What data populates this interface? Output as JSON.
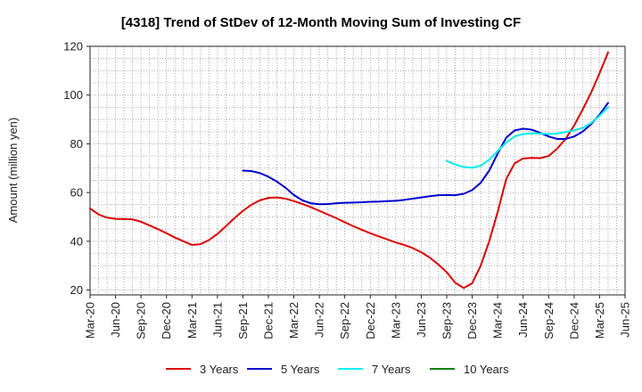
{
  "chart_data": {
    "type": "line",
    "title": "[4318]  Trend of StDev of 12-Month Moving Sum of Investing CF",
    "xlabel": "",
    "ylabel": "Amount (million yen)",
    "ylim": [
      18,
      120
    ],
    "yticks": [
      20,
      40,
      60,
      80,
      100,
      120
    ],
    "xlim": [
      "2020-03",
      "2025-06"
    ],
    "xticks": [
      "Mar-20",
      "Jun-20",
      "Sep-20",
      "Dec-20",
      "Mar-21",
      "Jun-21",
      "Sep-21",
      "Dec-21",
      "Mar-22",
      "Jun-22",
      "Sep-22",
      "Dec-22",
      "Mar-23",
      "Jun-23",
      "Sep-23",
      "Dec-23",
      "Mar-24",
      "Jun-24",
      "Sep-24",
      "Dec-24",
      "Mar-25",
      "Jun-25"
    ],
    "grid": true,
    "legend_position": "bottom",
    "series": [
      {
        "name": "3 Years",
        "color": "#dd0000",
        "points": [
          [
            "2020-03",
            53.5
          ],
          [
            "2020-04",
            51
          ],
          [
            "2020-05",
            49.7
          ],
          [
            "2020-06",
            49.2
          ],
          [
            "2020-07",
            49.1
          ],
          [
            "2020-08",
            49
          ],
          [
            "2020-09",
            48
          ],
          [
            "2020-10",
            46.5
          ],
          [
            "2020-11",
            45
          ],
          [
            "2020-12",
            43.3
          ],
          [
            "2021-01",
            41.5
          ],
          [
            "2021-02",
            40
          ],
          [
            "2021-03",
            38.5
          ],
          [
            "2021-04",
            38.8
          ],
          [
            "2021-05",
            40.5
          ],
          [
            "2021-06",
            43
          ],
          [
            "2021-07",
            46.2
          ],
          [
            "2021-08",
            49.5
          ],
          [
            "2021-09",
            52.5
          ],
          [
            "2021-10",
            55
          ],
          [
            "2021-11",
            56.8
          ],
          [
            "2021-12",
            57.8
          ],
          [
            "2022-01",
            58
          ],
          [
            "2022-02",
            57.5
          ],
          [
            "2022-03",
            56.5
          ],
          [
            "2022-04",
            55.3
          ],
          [
            "2022-05",
            54
          ],
          [
            "2022-06",
            52.5
          ],
          [
            "2022-07",
            51
          ],
          [
            "2022-08",
            49.5
          ],
          [
            "2022-09",
            47.8
          ],
          [
            "2022-10",
            46.2
          ],
          [
            "2022-11",
            44.7
          ],
          [
            "2022-12",
            43.3
          ],
          [
            "2023-01",
            42
          ],
          [
            "2023-02",
            40.8
          ],
          [
            "2023-03",
            39.5
          ],
          [
            "2023-04",
            38.5
          ],
          [
            "2023-05",
            37.2
          ],
          [
            "2023-06",
            35.5
          ],
          [
            "2023-07",
            33.3
          ],
          [
            "2023-08",
            30.5
          ],
          [
            "2023-09",
            27.3
          ],
          [
            "2023-10",
            23
          ],
          [
            "2023-11",
            20.8
          ],
          [
            "2023-12",
            22.8
          ],
          [
            "2024-01",
            30
          ],
          [
            "2024-02",
            40
          ],
          [
            "2024-03",
            52
          ],
          [
            "2024-04",
            65.5
          ],
          [
            "2024-05",
            72
          ],
          [
            "2024-06",
            74
          ],
          [
            "2024-07",
            74.2
          ],
          [
            "2024-08",
            74.1
          ],
          [
            "2024-09",
            75
          ],
          [
            "2024-10",
            78
          ],
          [
            "2024-11",
            82
          ],
          [
            "2024-12",
            87.5
          ],
          [
            "2025-01",
            94
          ],
          [
            "2025-02",
            101
          ],
          [
            "2025-03",
            109
          ],
          [
            "2025-04",
            117.5
          ]
        ]
      },
      {
        "name": "5 Years",
        "color": "#0000cc",
        "points": [
          [
            "2021-09",
            69
          ],
          [
            "2021-10",
            68.8
          ],
          [
            "2021-11",
            68
          ],
          [
            "2021-12",
            66.5
          ],
          [
            "2022-01",
            64.5
          ],
          [
            "2022-02",
            62
          ],
          [
            "2022-03",
            59
          ],
          [
            "2022-04",
            56.8
          ],
          [
            "2022-05",
            55.6
          ],
          [
            "2022-06",
            55.2
          ],
          [
            "2022-07",
            55.3
          ],
          [
            "2022-08",
            55.6
          ],
          [
            "2022-09",
            55.8
          ],
          [
            "2022-10",
            55.9
          ],
          [
            "2022-11",
            56
          ],
          [
            "2022-12",
            56.2
          ],
          [
            "2023-01",
            56.3
          ],
          [
            "2023-02",
            56.5
          ],
          [
            "2023-03",
            56.6
          ],
          [
            "2023-04",
            57
          ],
          [
            "2023-05",
            57.5
          ],
          [
            "2023-06",
            58
          ],
          [
            "2023-07",
            58.5
          ],
          [
            "2023-08",
            58.9
          ],
          [
            "2023-09",
            59
          ],
          [
            "2023-10",
            58.9
          ],
          [
            "2023-11",
            59.5
          ],
          [
            "2023-12",
            61
          ],
          [
            "2024-01",
            64
          ],
          [
            "2024-02",
            69
          ],
          [
            "2024-03",
            76
          ],
          [
            "2024-04",
            82.5
          ],
          [
            "2024-05",
            85.5
          ],
          [
            "2024-06",
            86.2
          ],
          [
            "2024-07",
            85.8
          ],
          [
            "2024-08",
            84.5
          ],
          [
            "2024-09",
            83
          ],
          [
            "2024-10",
            82
          ],
          [
            "2024-11",
            82
          ],
          [
            "2024-12",
            83
          ],
          [
            "2025-01",
            85
          ],
          [
            "2025-02",
            88
          ],
          [
            "2025-03",
            92
          ],
          [
            "2025-04",
            96.8
          ]
        ]
      },
      {
        "name": "7 Years",
        "color": "#00eeee",
        "points": [
          [
            "2023-09",
            73
          ],
          [
            "2023-10",
            71.5
          ],
          [
            "2023-11",
            70.5
          ],
          [
            "2023-12",
            70.2
          ],
          [
            "2024-01",
            71
          ],
          [
            "2024-02",
            73.5
          ],
          [
            "2024-03",
            77
          ],
          [
            "2024-04",
            80.5
          ],
          [
            "2024-05",
            83
          ],
          [
            "2024-06",
            84
          ],
          [
            "2024-07",
            84.3
          ],
          [
            "2024-08",
            84.2
          ],
          [
            "2024-09",
            84
          ],
          [
            "2024-10",
            84.2
          ],
          [
            "2024-11",
            84.8
          ],
          [
            "2024-12",
            85.5
          ],
          [
            "2025-01",
            86.5
          ],
          [
            "2025-02",
            88.5
          ],
          [
            "2025-03",
            91.5
          ],
          [
            "2025-04",
            95
          ]
        ]
      },
      {
        "name": "10 Years",
        "color": "#008000",
        "points": []
      }
    ]
  }
}
